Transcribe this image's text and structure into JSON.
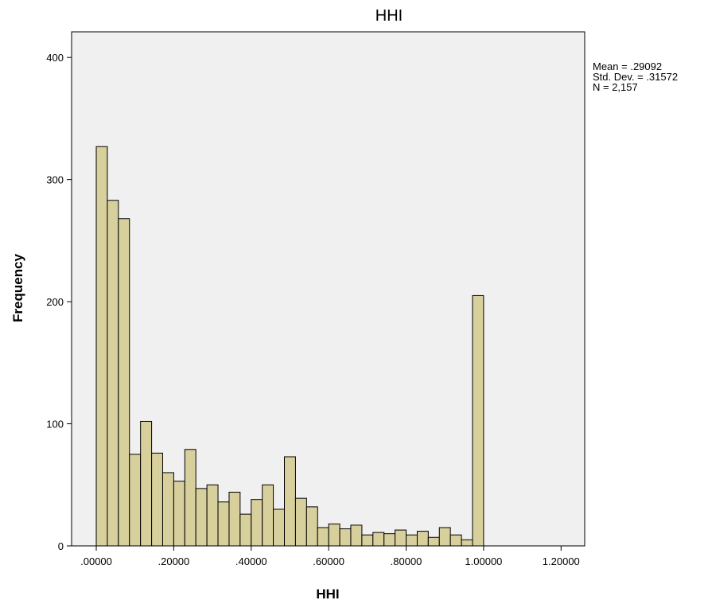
{
  "chart_data": {
    "type": "histogram",
    "title": "HHI",
    "xlabel": "HHI",
    "ylabel": "Frequency",
    "bins": [
      0,
      0.0286,
      0.0571,
      0.0857,
      0.1143,
      0.1429,
      0.1714,
      0.2,
      0.2286,
      0.2571,
      0.2857,
      0.3143,
      0.3429,
      0.3714,
      0.4,
      0.4286,
      0.4571,
      0.4857,
      0.5143,
      0.5429,
      0.5714,
      0.6,
      0.6286,
      0.6571,
      0.6857,
      0.7143,
      0.7429,
      0.7714,
      0.8,
      0.8286,
      0.8571,
      0.8857,
      0.9143,
      0.9429,
      0.9714,
      1.0
    ],
    "values": [
      327,
      283,
      268,
      75,
      102,
      76,
      60,
      53,
      79,
      47,
      50,
      36,
      44,
      26,
      38,
      50,
      30,
      73,
      39,
      32,
      15,
      18,
      14,
      17,
      9,
      11,
      10,
      13,
      9,
      12,
      7,
      15,
      9,
      5,
      205
    ],
    "color": "#d8d09c",
    "xlim": [
      -0.0637,
      1.261
    ],
    "ylim": [
      0,
      421
    ],
    "xticks": [
      {
        "value": 0,
        "label": ".00000"
      },
      {
        "value": 0.2,
        "label": ".20000"
      },
      {
        "value": 0.4,
        "label": ".40000"
      },
      {
        "value": 0.6,
        "label": ".60000"
      },
      {
        "value": 0.8,
        "label": ".80000"
      },
      {
        "value": 1.0,
        "label": "1.00000"
      },
      {
        "value": 1.2,
        "label": "1.20000"
      }
    ],
    "yticks": [
      0,
      100,
      200,
      300,
      400
    ],
    "annotations": [
      "Mean = .29092",
      "Std. Dev. = .31572",
      "N = 2,157"
    ]
  }
}
